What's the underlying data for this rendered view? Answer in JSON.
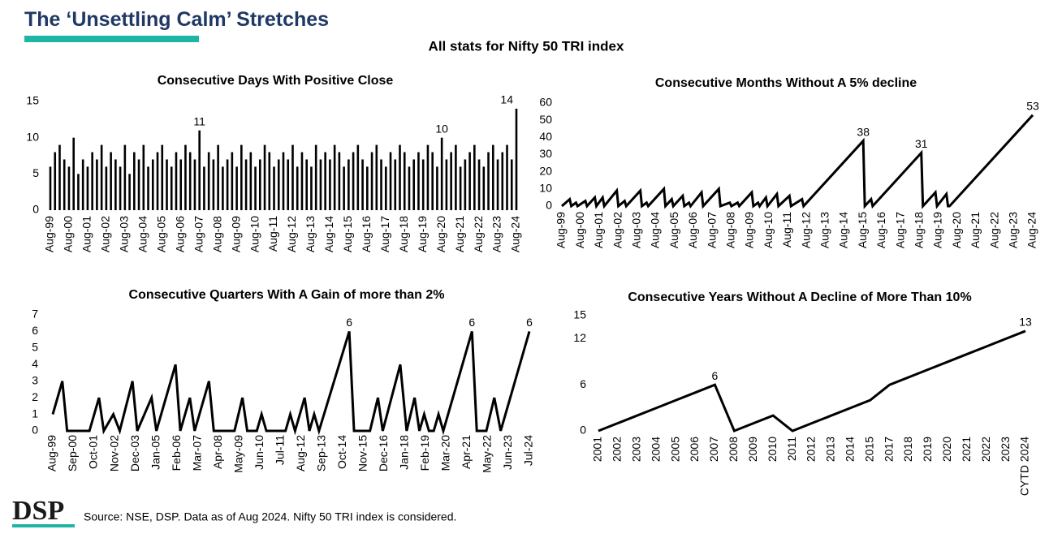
{
  "header": {
    "title": "The ‘Unsettling Calm’ Stretches",
    "subtitle": "All stats for Nifty 50 TRI index"
  },
  "footer": {
    "logo": "DSP",
    "source": "Source: NSE, DSP. Data as of Aug 2024. Nifty 50 TRI index is considered."
  },
  "chart_data": [
    {
      "type": "bar",
      "title": "Consecutive Days With Positive Close",
      "color": "#000000",
      "categories": [
        "Aug-99",
        null,
        null,
        null,
        "Aug-00",
        null,
        null,
        null,
        "Aug-01",
        null,
        null,
        null,
        "Aug-02",
        null,
        null,
        null,
        "Aug-03",
        null,
        null,
        null,
        "Aug-04",
        null,
        null,
        null,
        "Aug-05",
        null,
        null,
        null,
        "Aug-06",
        null,
        null,
        null,
        "Aug-07",
        null,
        null,
        null,
        "Aug-08",
        null,
        null,
        null,
        "Aug-09",
        null,
        null,
        null,
        "Aug-10",
        null,
        null,
        null,
        "Aug-11",
        null,
        null,
        null,
        "Aug-12",
        null,
        null,
        null,
        "Aug-13",
        null,
        null,
        null,
        "Aug-14",
        null,
        null,
        null,
        "Aug-15",
        null,
        null,
        null,
        "Aug-16",
        null,
        null,
        null,
        "Aug-17",
        null,
        null,
        null,
        "Aug-18",
        null,
        null,
        null,
        "Aug-19",
        null,
        null,
        null,
        "Aug-20",
        null,
        null,
        null,
        "Aug-21",
        null,
        null,
        null,
        "Aug-22",
        null,
        null,
        null,
        "Aug-23",
        null,
        null,
        null,
        "Aug-24"
      ],
      "values": [
        6,
        8,
        9,
        7,
        6,
        10,
        5,
        7,
        6,
        8,
        7,
        9,
        6,
        8,
        7,
        6,
        9,
        5,
        8,
        7,
        9,
        6,
        7,
        8,
        9,
        7,
        6,
        8,
        7,
        9,
        8,
        7,
        11,
        6,
        8,
        7,
        9,
        6,
        7,
        8,
        6,
        9,
        7,
        8,
        6,
        7,
        9,
        8,
        6,
        7,
        8,
        7,
        9,
        6,
        8,
        7,
        6,
        9,
        7,
        8,
        7,
        9,
        8,
        6,
        7,
        8,
        9,
        7,
        6,
        8,
        9,
        7,
        6,
        8,
        7,
        9,
        8,
        6,
        7,
        8,
        7,
        9,
        8,
        6,
        10,
        7,
        8,
        9,
        6,
        7,
        8,
        9,
        7,
        6,
        8,
        9,
        7,
        8,
        9,
        7,
        14
      ],
      "value_labels": [
        null,
        null,
        null,
        null,
        null,
        null,
        null,
        null,
        null,
        null,
        null,
        null,
        null,
        null,
        null,
        null,
        null,
        null,
        null,
        null,
        null,
        null,
        null,
        null,
        null,
        null,
        null,
        null,
        null,
        null,
        null,
        null,
        "11",
        null,
        null,
        null,
        null,
        null,
        null,
        null,
        null,
        null,
        null,
        null,
        null,
        null,
        null,
        null,
        null,
        null,
        null,
        null,
        null,
        null,
        null,
        null,
        null,
        null,
        null,
        null,
        null,
        null,
        null,
        null,
        null,
        null,
        null,
        null,
        null,
        null,
        null,
        null,
        null,
        null,
        null,
        null,
        null,
        null,
        null,
        null,
        null,
        null,
        null,
        null,
        "10",
        null,
        null,
        null,
        null,
        null,
        null,
        null,
        null,
        null,
        null,
        null,
        null,
        null,
        null,
        null,
        "14"
      ],
      "ylim": [
        0,
        15
      ],
      "yticks": [
        0,
        5,
        10,
        15
      ]
    },
    {
      "type": "line",
      "title": "Consecutive Months Without A 5% decline",
      "color": "#000000",
      "x": [
        "Aug-99",
        "Jan-00",
        "Feb-00",
        "May-00",
        "Jun-00",
        "Nov-00",
        "Dec-00",
        "May-01",
        "Jun-01",
        "Oct-01",
        "Nov-01",
        "Jul-02",
        "Aug-02",
        "Dec-02",
        "Jan-03",
        "Oct-03",
        "Nov-03",
        "Feb-04",
        "Mar-04",
        "Jan-05",
        "Feb-05",
        "Jun-05",
        "Jul-05",
        "Jan-06",
        "Feb-06",
        "May-06",
        "Jun-06",
        "Jan-07",
        "Feb-07",
        "Dec-07",
        "Jan-08",
        "Jul-08",
        "Aug-08",
        "Dec-08",
        "Jan-09",
        "Sep-09",
        "Oct-09",
        "Jan-10",
        "Feb-10",
        "Jun-10",
        "Jul-10",
        "Jan-11",
        "Feb-11",
        "Sep-11",
        "Oct-11",
        "May-12",
        "Jun-12",
        "Aug-15",
        "Sep-15",
        "Jan-16",
        "Feb-16",
        "Sep-18",
        "Oct-18",
        "Jun-19",
        "Jul-19",
        "Jan-20",
        "Feb-20",
        "Mar-20",
        "Aug-24"
      ],
      "values": [
        0,
        4,
        0,
        2,
        0,
        3,
        0,
        5,
        0,
        5,
        0,
        9,
        0,
        3,
        0,
        9,
        0,
        2,
        0,
        10,
        0,
        4,
        0,
        6,
        0,
        2,
        0,
        8,
        0,
        10,
        0,
        2,
        0,
        2,
        0,
        8,
        0,
        2,
        0,
        5,
        0,
        7,
        0,
        6,
        0,
        4,
        0,
        38,
        0,
        4,
        0,
        31,
        0,
        8,
        0,
        7,
        0,
        0,
        53
      ],
      "value_labels": [
        null,
        null,
        null,
        null,
        null,
        null,
        null,
        null,
        null,
        null,
        null,
        null,
        null,
        null,
        null,
        null,
        null,
        null,
        null,
        null,
        null,
        null,
        null,
        null,
        null,
        null,
        null,
        null,
        null,
        null,
        null,
        null,
        null,
        null,
        null,
        null,
        null,
        null,
        null,
        null,
        null,
        null,
        null,
        null,
        null,
        null,
        null,
        "38",
        null,
        null,
        null,
        "31",
        null,
        null,
        null,
        null,
        null,
        null,
        "53"
      ],
      "xlim": [
        "Aug-99",
        "Aug-24"
      ],
      "xticks": [
        "Aug-99",
        "Aug-00",
        "Aug-01",
        "Aug-02",
        "Aug-03",
        "Aug-04",
        "Aug-05",
        "Aug-06",
        "Aug-07",
        "Aug-08",
        "Aug-09",
        "Aug-10",
        "Aug-11",
        "Aug-12",
        "Aug-13",
        "Aug-14",
        "Aug-15",
        "Aug-16",
        "Aug-17",
        "Aug-18",
        "Aug-19",
        "Aug-20",
        "Aug-21",
        "Aug-22",
        "Aug-23",
        "Aug-24"
      ],
      "ylim": [
        0,
        60
      ],
      "yticks": [
        0,
        10,
        20,
        30,
        40,
        50,
        60
      ]
    },
    {
      "type": "line",
      "title": "Consecutive Quarters With A Gain of more than 2%",
      "color": "#000000",
      "x": [
        "Aug-99",
        "Feb-00",
        "May-00",
        "Jul-01",
        "Jan-02",
        "Apr-02",
        "Oct-02",
        "Feb-03",
        "Oct-03",
        "Jan-04",
        "Oct-04",
        "Jan-05",
        "Jan-06",
        "Apr-06",
        "Oct-06",
        "Jan-07",
        "Oct-07",
        "Jan-08",
        "Feb-09",
        "Jul-09",
        "Oct-09",
        "Apr-10",
        "Jul-10",
        "Oct-10",
        "Oct-11",
        "Jan-12",
        "Apr-12",
        "Oct-12",
        "Jan-13",
        "Apr-13",
        "Jul-13",
        "Feb-15",
        "May-15",
        "Mar-16",
        "Aug-16",
        "Nov-16",
        "Oct-17",
        "Feb-18",
        "Jul-18",
        "Oct-18",
        "Jan-19",
        "Apr-19",
        "Jul-19",
        "Oct-19",
        "Jan-20",
        "Jul-21",
        "Oct-21",
        "Apr-22",
        "Sep-22",
        "Jan-23",
        "Jul-24"
      ],
      "values": [
        1,
        3,
        0,
        0,
        2,
        0,
        1,
        0,
        3,
        0,
        2,
        0,
        4,
        0,
        2,
        0,
        3,
        0,
        0,
        2,
        0,
        0,
        1,
        0,
        0,
        1,
        0,
        2,
        0,
        1,
        0,
        6,
        0,
        0,
        2,
        0,
        4,
        0,
        2,
        0,
        1,
        0,
        0,
        1,
        0,
        6,
        0,
        0,
        2,
        0,
        6
      ],
      "value_labels": [
        null,
        null,
        null,
        null,
        null,
        null,
        null,
        null,
        null,
        null,
        null,
        null,
        null,
        null,
        null,
        null,
        null,
        null,
        null,
        null,
        null,
        null,
        null,
        null,
        null,
        null,
        null,
        null,
        null,
        null,
        null,
        "6",
        null,
        null,
        null,
        null,
        null,
        null,
        null,
        null,
        null,
        null,
        null,
        null,
        null,
        "6",
        null,
        null,
        null,
        null,
        "6"
      ],
      "xlim": [
        "Aug-99",
        "Jul-24"
      ],
      "xticks": [
        "Aug-99",
        "Sep-00",
        "Oct-01",
        "Nov-02",
        "Dec-03",
        "Jan-05",
        "Feb-06",
        "Mar-07",
        "Apr-08",
        "May-09",
        "Jun-10",
        "Jul-11",
        "Aug-12",
        "Sep-13",
        "Oct-14",
        "Nov-15",
        "Dec-16",
        "Jan-18",
        "Feb-19",
        "Mar-20",
        "Apr-21",
        "May-22",
        "Jun-23",
        "Jul-24"
      ],
      "ylim": [
        0,
        7
      ],
      "yticks": [
        0,
        1,
        2,
        3,
        4,
        5,
        6,
        7
      ]
    },
    {
      "type": "line",
      "title": "Consecutive Years Without A Decline of More Than 10%",
      "color": "#000000",
      "categories": [
        "2001",
        "2002",
        "2003",
        "2004",
        "2005",
        "2006",
        "2007",
        "2008",
        "2009",
        "2010",
        "2011",
        "2012",
        "2013",
        "2014",
        "2015",
        "2017",
        "2018",
        "2019",
        "2020",
        "2021",
        "2022",
        "2023",
        "CYTD 2024"
      ],
      "values": [
        0,
        1,
        2,
        3,
        4,
        5,
        6,
        0,
        1,
        2,
        0,
        1,
        2,
        3,
        4,
        6,
        7,
        8,
        9,
        10,
        11,
        12,
        13
      ],
      "value_labels": [
        null,
        null,
        null,
        null,
        null,
        null,
        "6",
        null,
        null,
        null,
        null,
        null,
        null,
        null,
        null,
        null,
        null,
        null,
        null,
        null,
        null,
        null,
        "13"
      ],
      "ylim": [
        0,
        15
      ],
      "yticks": [
        0,
        6,
        12,
        15
      ]
    }
  ]
}
